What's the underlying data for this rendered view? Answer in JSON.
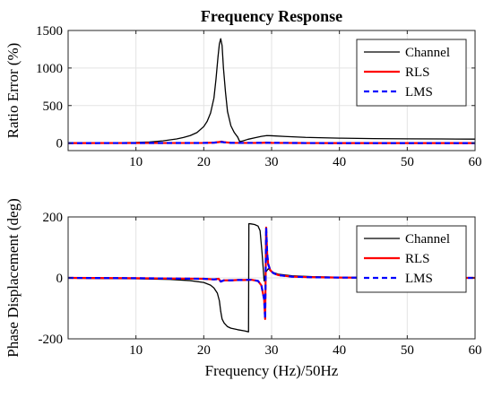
{
  "chart_data": [
    {
      "type": "line",
      "title": "Frequency Response",
      "xlabel": "",
      "ylabel": "Ratio Error (%)",
      "xlim": [
        0,
        60
      ],
      "ylim": [
        -100,
        1500
      ],
      "xticks": [
        10,
        20,
        30,
        40,
        50,
        60
      ],
      "yticks": [
        0,
        500,
        1000,
        1500
      ],
      "grid": true,
      "legend": "top-right",
      "series": [
        {
          "name": "Channel",
          "color": "#000000",
          "dash": "solid",
          "x": [
            0,
            5,
            10,
            12,
            14,
            16,
            17,
            18,
            19,
            20,
            20.5,
            21,
            21.5,
            21.8,
            22.1,
            22.3,
            22.5,
            22.7,
            22.9,
            23.2,
            23.5,
            24,
            24.5,
            25,
            25.3,
            25.8,
            26.5,
            27.5,
            28.5,
            29.3,
            30,
            32,
            35,
            40,
            45,
            50,
            55,
            60
          ],
          "y": [
            0,
            3,
            8,
            15,
            30,
            55,
            75,
            100,
            140,
            220,
            290,
            400,
            600,
            850,
            1150,
            1320,
            1390,
            1300,
            1000,
            680,
            420,
            230,
            140,
            80,
            20,
            30,
            50,
            70,
            90,
            100,
            98,
            88,
            76,
            66,
            60,
            57,
            55,
            53
          ]
        },
        {
          "name": "RLS",
          "color": "#ff0000",
          "dash": "solid",
          "x": [
            0,
            10,
            20,
            21.5,
            22.3,
            22.6,
            23,
            24,
            26,
            28.5,
            29.2,
            30,
            35,
            40,
            50,
            60
          ],
          "y": [
            0,
            1,
            2,
            6,
            15,
            20,
            12,
            4,
            2,
            3,
            6,
            3,
            1,
            0,
            0,
            0
          ]
        },
        {
          "name": "LMS",
          "color": "#0000ff",
          "dash": "dashed",
          "x": [
            0,
            10,
            20,
            21.5,
            22.3,
            22.6,
            23,
            24,
            26,
            28.5,
            29.2,
            30,
            35,
            40,
            50,
            60
          ],
          "y": [
            0,
            1,
            2,
            5,
            12,
            16,
            10,
            3,
            2,
            3,
            5,
            3,
            1,
            0,
            0,
            0
          ]
        }
      ]
    },
    {
      "type": "line",
      "title": "",
      "xlabel": "Frequency (Hz)/50Hz",
      "ylabel": "Phase Displacement (deg)",
      "xlim": [
        0,
        60
      ],
      "ylim": [
        -200,
        200
      ],
      "xticks": [
        10,
        20,
        30,
        40,
        50,
        60
      ],
      "yticks": [
        -200,
        0,
        200
      ],
      "grid": true,
      "legend": "top-right",
      "series": [
        {
          "name": "Channel",
          "color": "#000000",
          "dash": "solid",
          "x": [
            0,
            5,
            10,
            15,
            18,
            20,
            21,
            21.5,
            22,
            22.3,
            22.5,
            22.7,
            23,
            23.5,
            24,
            25,
            26,
            26.6,
            26.65,
            26.7,
            27,
            27.5,
            28,
            28.3,
            28.6,
            28.9,
            29.2,
            29.5,
            29.8,
            30.2,
            31,
            33,
            36,
            40,
            45,
            50,
            55,
            60
          ],
          "y": [
            -1,
            -2,
            -3,
            -5,
            -9,
            -15,
            -24,
            -33,
            -50,
            -75,
            -110,
            -135,
            -148,
            -160,
            -165,
            -170,
            -174,
            -177,
            178,
            178,
            177,
            175,
            170,
            155,
            80,
            -10,
            20,
            30,
            25,
            18,
            12,
            7,
            4,
            2,
            1,
            0.5,
            0.2,
            0
          ]
        },
        {
          "name": "RLS",
          "color": "#ff0000",
          "dash": "solid",
          "x": [
            0,
            10,
            15,
            20,
            21.5,
            22.2,
            22.5,
            23,
            24,
            25,
            26,
            27,
            28,
            28.5,
            28.9,
            29.05,
            29.2,
            29.35,
            29.5,
            29.8,
            30.3,
            31,
            33,
            36,
            40,
            45,
            50,
            60
          ],
          "y": [
            0,
            -1,
            -2,
            -3,
            -5,
            -3,
            -12,
            -8,
            -8,
            -7,
            -7,
            -6,
            -10,
            -25,
            -70,
            -135,
            165,
            80,
            45,
            25,
            15,
            9,
            4,
            2,
            1,
            0.5,
            0.2,
            0
          ]
        },
        {
          "name": "LMS",
          "color": "#0000ff",
          "dash": "dashed",
          "x": [
            0,
            10,
            15,
            20,
            21.5,
            22.2,
            22.5,
            23,
            24,
            25,
            26,
            27,
            28,
            28.5,
            28.9,
            29.05,
            29.2,
            29.35,
            29.5,
            29.8,
            30.3,
            31,
            33,
            36,
            40,
            45,
            50,
            60
          ],
          "y": [
            0,
            -1,
            -2,
            -3,
            -5,
            -4,
            -12,
            -8,
            -8,
            -7,
            -7,
            -6,
            -10,
            -25,
            -70,
            -135,
            165,
            80,
            45,
            25,
            15,
            9,
            4,
            2,
            1,
            0.5,
            0.2,
            0
          ]
        }
      ]
    }
  ]
}
